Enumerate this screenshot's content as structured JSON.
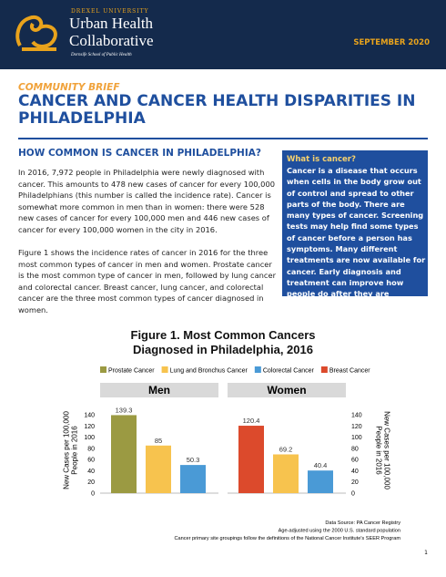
{
  "header": {
    "university": "DREXEL UNIVERSITY",
    "name_line1": "Urban Health",
    "name_line2": "Collaborative",
    "school": "Dornsife School of Public Health",
    "date": "SEPTEMBER 2020"
  },
  "brief": {
    "label": "COMMUNITY BRIEF",
    "title": "CANCER AND CANCER HEALTH DISPARITIES IN PHILADELPHIA"
  },
  "section": {
    "heading": "HOW COMMON IS CANCER IN PHILADELPHIA?",
    "paragraphs": [
      "In 2016, 7,972 people in Philadelphia were newly diagnosed with cancer. This amounts to 478 new cases of cancer for every 100,000 Philadelphians (this number is called the incidence rate). Cancer is somewhat more common in men than in women: there were 528 new cases of cancer for every 100,000 men and 446 new cases of cancer for every 100,000 women in the city in 2016.",
      "Figure 1 shows the incidence rates of cancer in 2016 for the three most common types of cancer in men and women. Prostate cancer is the most common type of cancer in men, followed by lung cancer and colorectal cancer. Breast cancer, lung cancer, and colorectal cancer are the three most common types of cancer diagnosed in women."
    ]
  },
  "sidebar": {
    "title": "What is cancer?",
    "text": "Cancer is a disease that occurs when cells in the body grow out of control and spread to other parts of the body. There are many types of cancer. Screening tests may help find some types of cancer before a person has symptoms. Many different treatments are now available for cancer. Early diagnosis and treatment can improve how people do after they are diagnosed with cancer."
  },
  "chart_data": {
    "type": "bar",
    "title": "Figure 1. Most Common Cancers Diagnosed in Philadelphia, 2016",
    "categories": [
      "Men",
      "Women"
    ],
    "series": [
      {
        "name": "Prostate Cancer",
        "color": "#9b9a42",
        "values": [
          139.3,
          null
        ]
      },
      {
        "name": "Lung and Bronchus Cancer",
        "color": "#f7c34e",
        "values": [
          85,
          69.2
        ]
      },
      {
        "name": "Colorectal Cancer",
        "color": "#4a9ad6",
        "values": [
          50.3,
          40.4
        ]
      },
      {
        "name": "Breast Cancer",
        "color": "#dc4a2c",
        "values": [
          null,
          120.4
        ]
      }
    ],
    "ylim": [
      0,
      140
    ],
    "yticks": [
      0,
      20,
      40,
      60,
      80,
      100,
      120,
      140
    ],
    "y2lim": [
      0,
      140
    ],
    "y2ticks": [
      0,
      20,
      40,
      60,
      80,
      100,
      120,
      140
    ],
    "y_label": "New Cases per 100,000 People in 2016",
    "y2_label": "New Cases per 100,000 People in 2016",
    "notes": [
      "Data Source: PA Cancer Registry",
      "Age-adjusted using the 2000 U.S. standard population",
      "Cancer primary site groupings follow the definitions of the National Cancer Institute's SEER Program"
    ]
  },
  "page_number": "1"
}
